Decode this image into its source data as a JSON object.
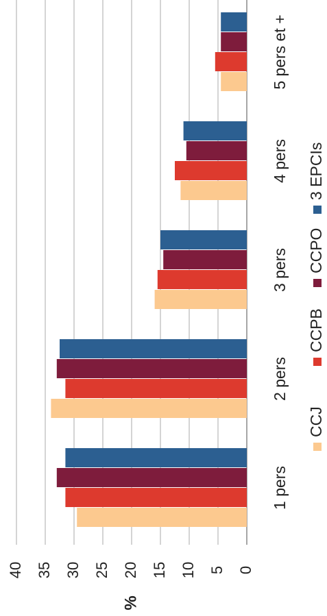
{
  "chart_data": {
    "type": "bar",
    "orientation": "horizontal-bars, rotated 90 degrees counter-clockwise",
    "categories": [
      "1 pers",
      "2 pers",
      "3 pers",
      "4 pers",
      "5 pers et +"
    ],
    "series": [
      {
        "name": "CCJ",
        "color": "#fcc98f",
        "values": [
          29.5,
          34.0,
          16.0,
          11.5,
          4.5
        ]
      },
      {
        "name": "CCPB",
        "color": "#dd3a2e",
        "values": [
          31.5,
          31.5,
          15.5,
          12.5,
          5.5
        ]
      },
      {
        "name": "CCPO",
        "color": "#7e1c3c",
        "values": [
          33.0,
          33.0,
          14.5,
          10.5,
          4.5
        ]
      },
      {
        "name": "3 EPCIs",
        "color": "#2c5f91",
        "values": [
          31.5,
          32.5,
          15.0,
          11.0,
          4.5
        ]
      }
    ],
    "ylabel": "%",
    "xlabel": "",
    "title": "",
    "ylim": [
      0,
      40
    ],
    "ticks": [
      "0",
      "5",
      "10",
      "15",
      "20",
      "25",
      "30",
      "35",
      "40"
    ],
    "grid": true,
    "legend_position": "bottom"
  }
}
